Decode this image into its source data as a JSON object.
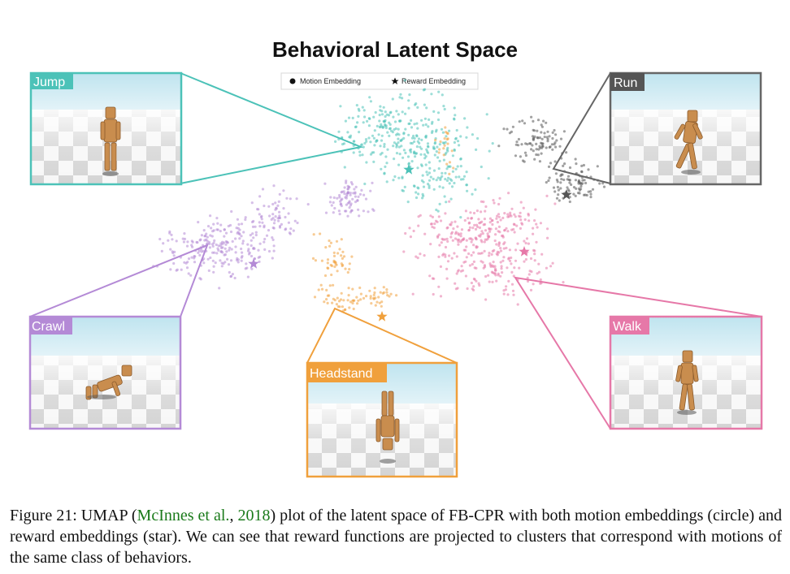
{
  "figure": {
    "title": "Behavioral Latent Space",
    "legend": {
      "motion_label": "Motion Embedding",
      "reward_label": "Reward Embedding"
    },
    "colors": {
      "jump": "#4cc2b8",
      "run": "#555555",
      "crawl": "#b48ad6",
      "headstand": "#f0a03c",
      "walk": "#e678a8"
    },
    "panels": {
      "jump": "Jump",
      "run": "Run",
      "crawl": "Crawl",
      "headstand": "Headstand",
      "walk": "Walk"
    }
  },
  "caption": {
    "prefix": "Figure 21: UMAP (",
    "cite_author": "McInnes et al.",
    "cite_sep": ", ",
    "cite_year": "2018",
    "suffix": ") plot of the latent space of FB-CPR with both motion embeddings (circle) and reward embeddings (star). We can see that reward functions are projected to clusters that correspond with motions of the same class of behaviors."
  }
}
